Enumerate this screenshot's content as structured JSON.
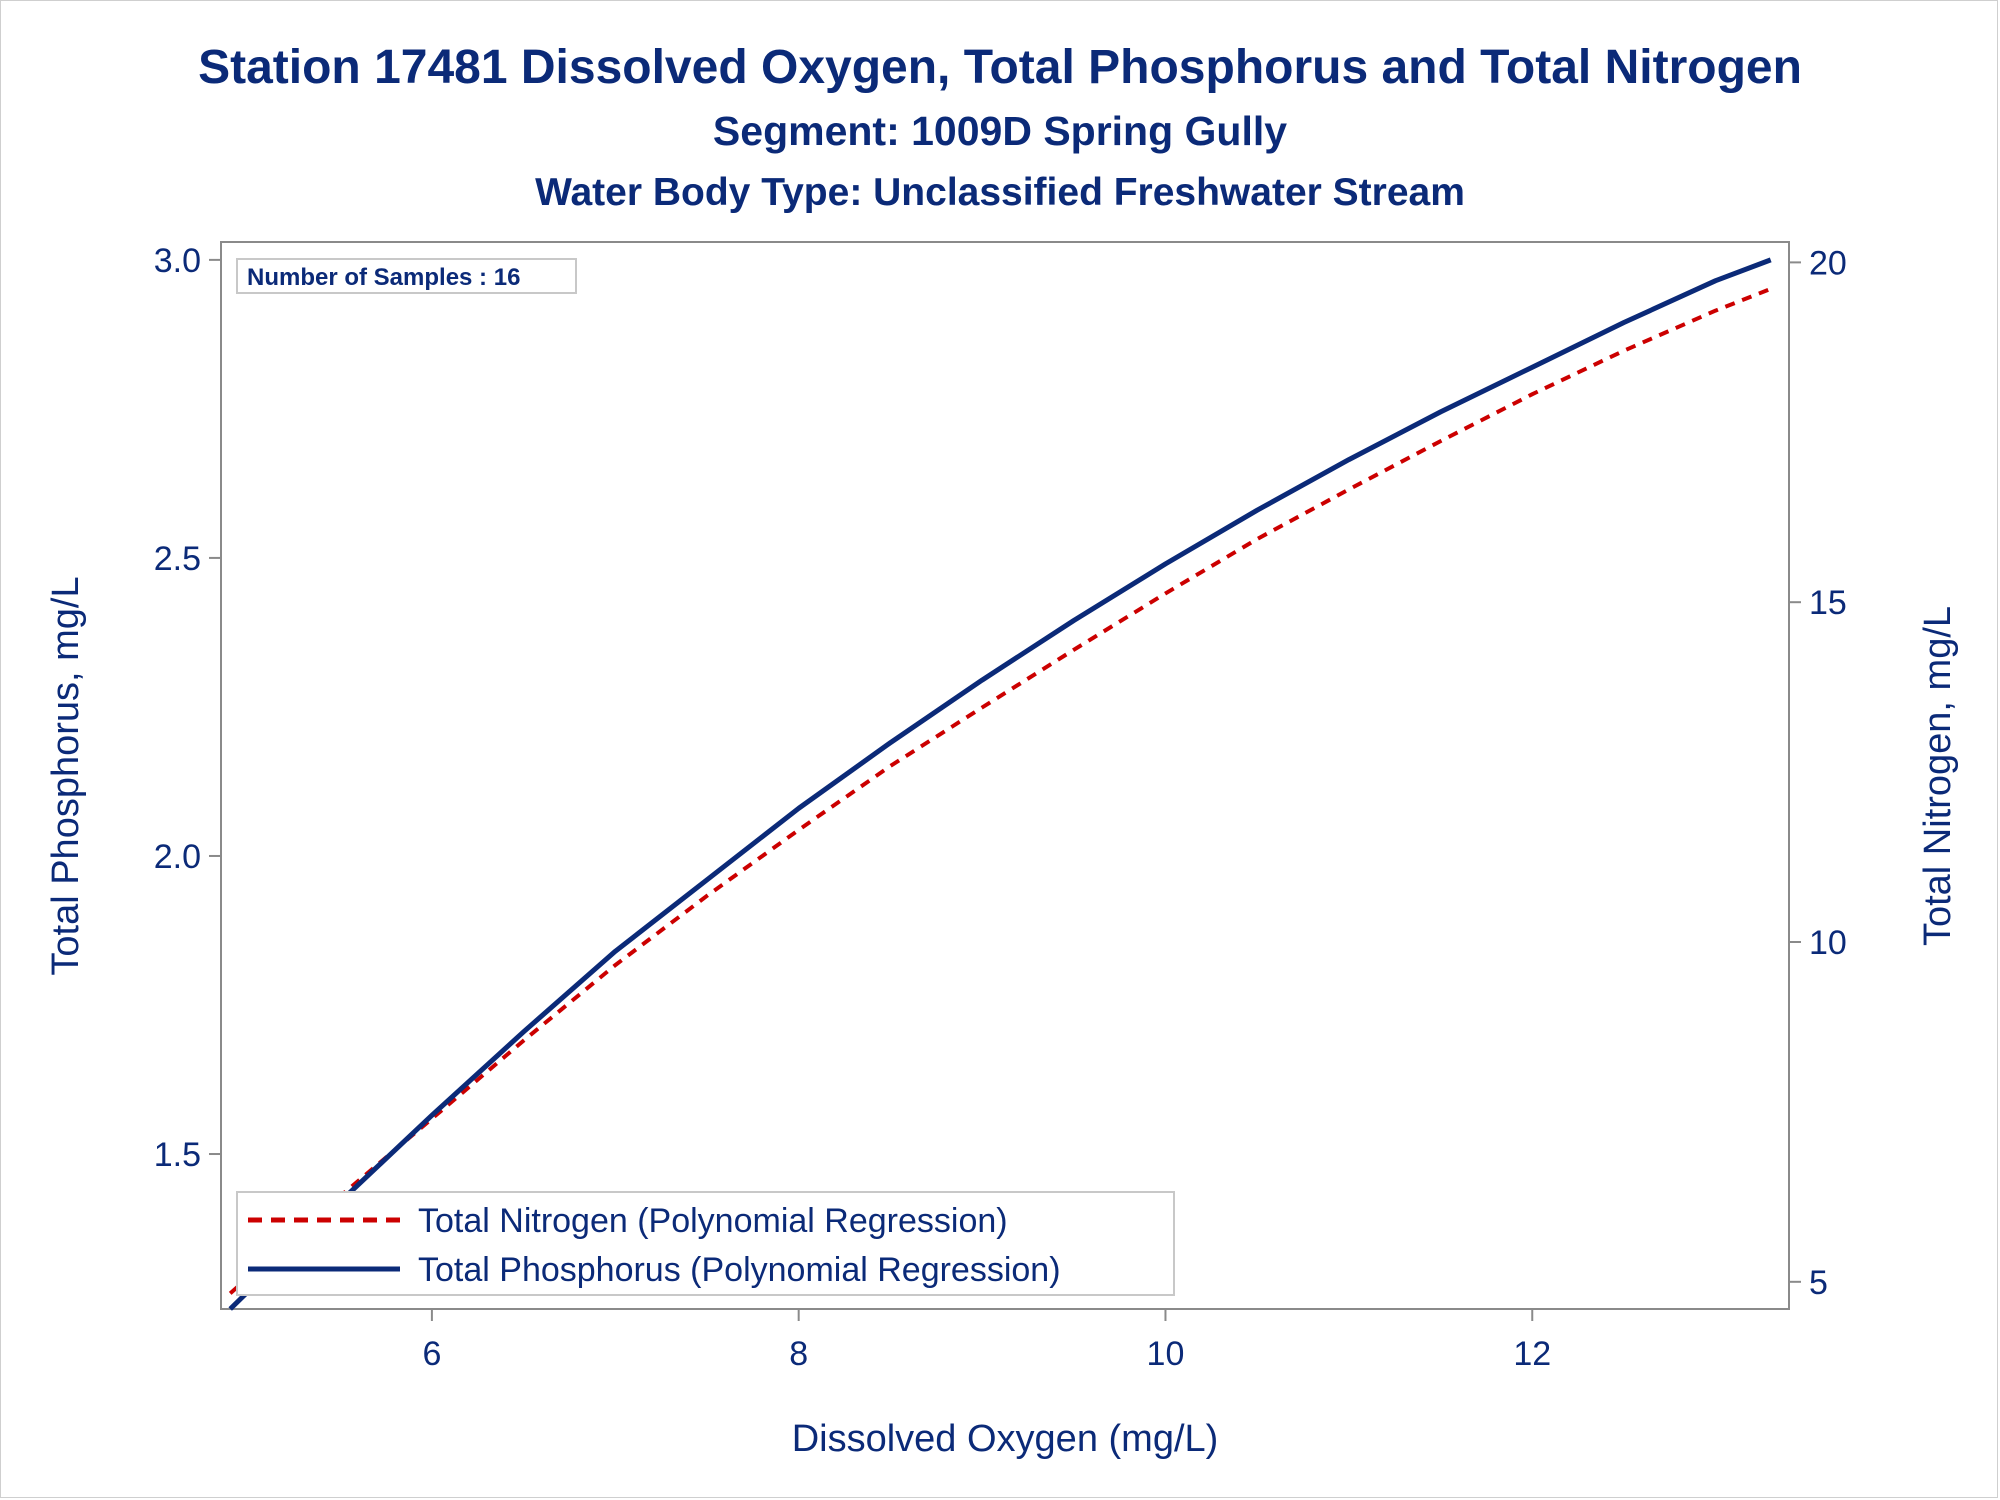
{
  "titles": {
    "line1": "Station 17481  Dissolved Oxygen, Total Phosphorus and Total Nitrogen",
    "line2": "Segment: 1009D  Spring Gully",
    "line3": "Water Body Type: Unclassified Freshwater Stream"
  },
  "inset": {
    "samples_label": "Number of Samples : 16"
  },
  "legend": {
    "nitrogen_label": "Total Nitrogen (Polynomial Regression)",
    "phosphorus_label": "Total Phosphorus (Polynomial Regression)"
  },
  "colors": {
    "nitrogen": "#cc0000",
    "phosphorus": "#0b2a78",
    "text": "#0b2a78",
    "axis": "#8a8a8a"
  },
  "chart_data": {
    "type": "line",
    "xlabel": "Dissolved Oxygen (mg/L)",
    "ylabel": "Total Phosphorus, mg/L",
    "y2label": "Total Nitrogen, mg/L",
    "xlim": [
      4.85,
      13.4
    ],
    "ylim": [
      1.24,
      3.03
    ],
    "y2lim": [
      4.6,
      20.3
    ],
    "x_ticks": [
      6,
      8,
      10,
      12
    ],
    "y_ticks": [
      1.5,
      2.0,
      2.5,
      3.0
    ],
    "y2_ticks": [
      5,
      10,
      15,
      20
    ],
    "series": [
      {
        "name": "Total Nitrogen (Polynomial Regression)",
        "axis": "y2",
        "style": "dashed",
        "x": [
          4.9,
          5.5,
          6.0,
          6.5,
          7.0,
          7.5,
          8.0,
          8.5,
          9.0,
          9.5,
          10.0,
          10.5,
          11.0,
          11.5,
          12.0,
          12.5,
          13.0,
          13.3
        ],
        "values": [
          4.83,
          6.26,
          7.4,
          8.55,
          9.66,
          10.68,
          11.65,
          12.59,
          13.45,
          14.3,
          15.13,
          15.93,
          16.66,
          17.37,
          18.06,
          18.7,
          19.29,
          19.61
        ]
      },
      {
        "name": "Total Phosphorus (Polynomial Regression)",
        "axis": "y",
        "style": "solid",
        "x": [
          4.9,
          5.5,
          6.0,
          6.5,
          7.0,
          7.5,
          8.0,
          8.5,
          9.0,
          9.5,
          10.0,
          10.5,
          11.0,
          11.5,
          12.0,
          12.5,
          13.0,
          13.3
        ],
        "values": [
          1.24,
          1.42,
          1.565,
          1.705,
          1.84,
          1.96,
          2.08,
          2.19,
          2.295,
          2.395,
          2.49,
          2.58,
          2.665,
          2.745,
          2.82,
          2.895,
          2.965,
          3.0
        ]
      }
    ]
  }
}
